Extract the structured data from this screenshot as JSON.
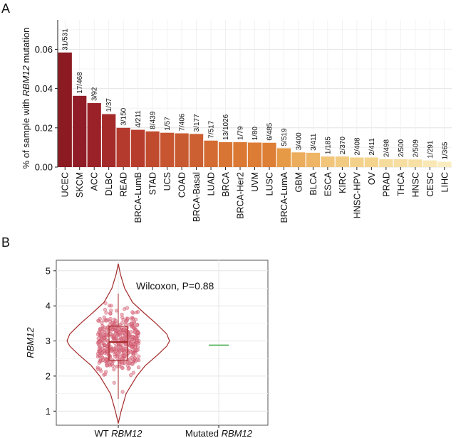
{
  "panels": {
    "a_label": "A",
    "b_label": "B"
  },
  "chart_data": [
    {
      "type": "bar",
      "panel": "A",
      "ylabel_prefix": "% of sample with ",
      "ylabel_gene": "RBM12",
      "ylabel_suffix": " mutation",
      "ylim": [
        0,
        0.075
      ],
      "yticks": [
        0.0,
        0.02,
        0.04,
        0.06
      ],
      "ytick_labels": [
        "0.00",
        "0.02",
        "0.04",
        "0.06"
      ],
      "grid": true,
      "categories": [
        "UCEC",
        "SKCM",
        "ACC",
        "DLBC",
        "READ",
        "BRCA-LumB",
        "STAD",
        "UCS",
        "COAD",
        "BRCA-Basal",
        "LUAD",
        "BRCA",
        "BRCA-Her2",
        "UVM",
        "LUSC",
        "BRCA-LumA",
        "GBM",
        "BLCA",
        "ESCA",
        "KIRC",
        "HNSC-HPV",
        "OV",
        "PRAD",
        "THCA",
        "HNSC",
        "CESC",
        "LIHC"
      ],
      "values": [
        0.0584,
        0.0363,
        0.0326,
        0.027,
        0.02,
        0.019,
        0.0182,
        0.0175,
        0.0172,
        0.0169,
        0.0135,
        0.0127,
        0.0127,
        0.0125,
        0.0124,
        0.0096,
        0.0075,
        0.0073,
        0.0054,
        0.0054,
        0.0049,
        0.0049,
        0.004,
        0.004,
        0.0039,
        0.0034,
        0.0027
      ],
      "labels": [
        "31/531",
        "17/468",
        "3/92",
        "1/37",
        "3/150",
        "4/211",
        "8/439",
        "1/57",
        "7/406",
        "3/177",
        "7/517",
        "13/1026",
        "1/79",
        "1/80",
        "6/485",
        "5/519",
        "3/400",
        "3/411",
        "1/185",
        "2/370",
        "2/408",
        "2/411",
        "2/498",
        "2/500",
        "2/509",
        "1/291",
        "1/365"
      ],
      "colors": [
        "#8b1a22",
        "#8f1c26",
        "#9b2128",
        "#a52a2a",
        "#b43a2e",
        "#b83c2c",
        "#c04a2e",
        "#c65530",
        "#c85a31",
        "#cc6032",
        "#d36b32",
        "#d87534",
        "#da7834",
        "#dc7c35",
        "#de7f36",
        "#e69a46",
        "#ebac5c",
        "#eeb566",
        "#f1c57a",
        "#f2cb82",
        "#f4d18a",
        "#f4d38d",
        "#f6dc9c",
        "#f7deA0",
        "#f7e0a4",
        "#f9e8b5",
        "#faecbe"
      ]
    },
    {
      "type": "violin",
      "panel": "B",
      "ylabel": "RBM12",
      "ylim": [
        0.6,
        5.3
      ],
      "yticks": [
        1,
        2,
        3,
        4,
        5
      ],
      "ytick_labels": [
        "1",
        "2",
        "3",
        "4",
        "5"
      ],
      "groups": [
        {
          "label_prefix": "WT ",
          "label_gene": "RBM12",
          "median": 2.97,
          "q1": 2.45,
          "q3": 3.42,
          "whisker_low": 1.35,
          "whisker_high": 4.35,
          "min": 0.65,
          "max": 5.2
        },
        {
          "label_prefix": "Mutated ",
          "label_gene": "RBM12",
          "value": 2.88
        }
      ],
      "annotation": "Wilcoxon, P=0.88",
      "violin_color": "#a52a2a",
      "point_color": "#e07a8a",
      "mutated_color": "#4caf50"
    }
  ]
}
